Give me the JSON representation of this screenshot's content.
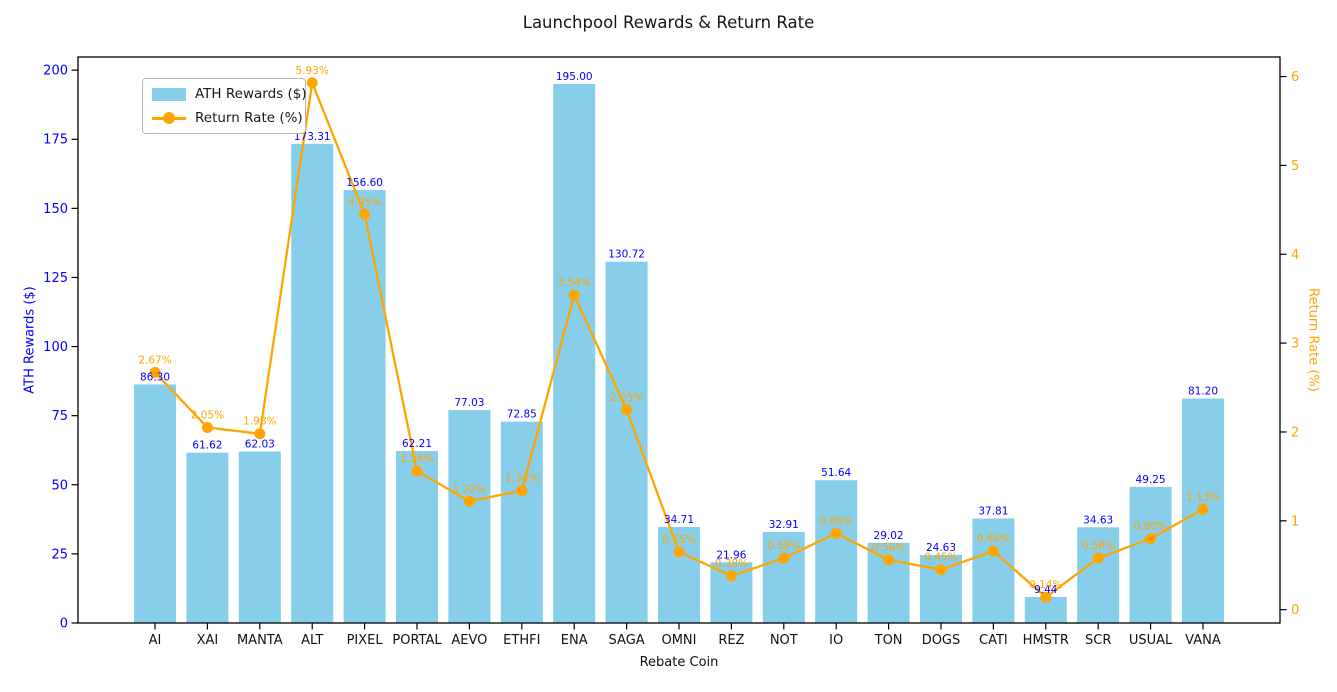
{
  "title": "Launchpool Rewards & Return Rate",
  "xlabel": "Rebate Coin",
  "colors": {
    "bar": "#87CEEB",
    "line": "#FFA500",
    "bar_value_label": "#0000FF",
    "line_value_label": "#FFA500",
    "left_axis_label": "#0000FF",
    "right_axis_label": "#FFA500",
    "axis_spine": "#000000",
    "x_tick_label": "#111111"
  },
  "chart_data": {
    "type": "bar",
    "subtype": "bar+line dual-axis combo",
    "title": "Launchpool Rewards & Return Rate",
    "xlabel": "Rebate Coin",
    "grid": false,
    "categories": [
      "AI",
      "XAI",
      "MANTA",
      "ALT",
      "PIXEL",
      "PORTAL",
      "AEVO",
      "ETHFI",
      "ENA",
      "SAGA",
      "OMNI",
      "REZ",
      "NOT",
      "IO",
      "TON",
      "DOGS",
      "CATI",
      "HMSTR",
      "SCR",
      "USUAL",
      "VANA"
    ],
    "series": [
      {
        "name": "ATH Rewards ($)",
        "type": "bar",
        "axis": "left",
        "color": "#87CEEB",
        "values": [
          86.3,
          61.62,
          62.03,
          173.31,
          156.6,
          62.21,
          77.03,
          72.85,
          195.0,
          130.72,
          34.71,
          21.96,
          32.91,
          51.64,
          29.02,
          24.63,
          37.81,
          9.44,
          34.63,
          49.25,
          81.2
        ]
      },
      {
        "name": "Return Rate (%)",
        "type": "line",
        "axis": "right",
        "color": "#FFA500",
        "values": [
          2.67,
          2.05,
          1.98,
          5.93,
          4.45,
          1.56,
          1.22,
          1.34,
          3.54,
          2.25,
          0.65,
          0.38,
          0.58,
          0.86,
          0.56,
          0.45,
          0.66,
          0.14,
          0.58,
          0.8,
          1.13
        ]
      }
    ],
    "left_axis": {
      "label": "ATH Rewards ($)",
      "color": "#0000FF",
      "ticks": [
        0,
        25,
        50,
        75,
        100,
        125,
        150,
        175,
        200
      ],
      "range": [
        0,
        204.75
      ]
    },
    "right_axis": {
      "label": "Return Rate (%)",
      "color": "#FFA500",
      "ticks": [
        0,
        1,
        2,
        3,
        4,
        5,
        6
      ],
      "range": [
        -0.15,
        6.22
      ]
    },
    "legend": {
      "position": "upper left",
      "entries": [
        "ATH Rewards ($)",
        "Return Rate (%)"
      ]
    }
  }
}
